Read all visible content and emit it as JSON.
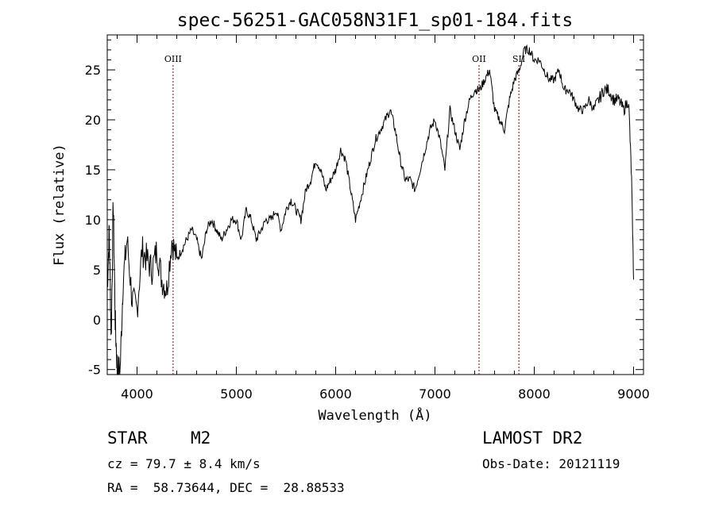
{
  "chart_data": {
    "type": "line",
    "title": "spec-56251-GAC058N31F1_sp01-184.fits",
    "xlabel": "Wavelength (Å)",
    "ylabel": "Flux (relative)",
    "xlim": [
      3700,
      9100
    ],
    "ylim": [
      -5.5,
      28.5
    ],
    "xticks": [
      4000,
      5000,
      6000,
      7000,
      8000,
      9000
    ],
    "yticks": [
      -5,
      0,
      5,
      10,
      15,
      20,
      25
    ],
    "xtick_labels": [
      "4000",
      "5000",
      "6000",
      "7000",
      "8000",
      "9000"
    ],
    "ytick_labels": [
      "-5",
      "0",
      "5",
      "10",
      "15",
      "20",
      "25"
    ],
    "grid": false,
    "line_color": "#000000",
    "marker_color": "#8b0000",
    "lines": [
      {
        "name": "OIII",
        "x": 4363
      },
      {
        "name": "OII",
        "x": 7444
      },
      {
        "name": "SII",
        "x": 7845
      }
    ],
    "series": [
      {
        "x": [
          3700,
          3720,
          3740,
          3760,
          3780,
          3800,
          3830,
          3860,
          3900,
          3950,
          4000,
          4050,
          4100,
          4150,
          4200,
          4250,
          4300,
          4350,
          4400,
          4450,
          4500,
          4550,
          4600,
          4650,
          4700,
          4750,
          4800,
          4850,
          4900,
          4950,
          5000,
          5050,
          5100,
          5150,
          5200,
          5250,
          5300,
          5350,
          5400,
          5450,
          5500,
          5550,
          5600,
          5650,
          5700,
          5750,
          5800,
          5850,
          5900,
          5950,
          6000,
          6050,
          6100,
          6150,
          6200,
          6250,
          6300,
          6350,
          6400,
          6450,
          6500,
          6550,
          6600,
          6650,
          6700,
          6750,
          6800,
          6850,
          6900,
          6950,
          7000,
          7050,
          7100,
          7150,
          7200,
          7250,
          7300,
          7350,
          7400,
          7450,
          7500,
          7550,
          7600,
          7650,
          7700,
          7750,
          7800,
          7850,
          7900,
          7950,
          8000,
          8050,
          8100,
          8150,
          8200,
          8250,
          8300,
          8350,
          8400,
          8450,
          8500,
          8550,
          8600,
          8650,
          8700,
          8750,
          8800,
          8850,
          8900,
          8950,
          8980,
          9000
        ],
        "y": [
          3,
          9,
          -2,
          12,
          0,
          -5,
          -5,
          4,
          8,
          2,
          1,
          7,
          6,
          5,
          7,
          4,
          3,
          8,
          6,
          7,
          8,
          9,
          8,
          6,
          9,
          10,
          9,
          8,
          9,
          10,
          10,
          8,
          11,
          10,
          8,
          9,
          10,
          10,
          11,
          9,
          11,
          12,
          11,
          10,
          13,
          14,
          16,
          15,
          13,
          14,
          15,
          17,
          16,
          13,
          10,
          12,
          14,
          16,
          18,
          19,
          20,
          21,
          19,
          16,
          14,
          14,
          13,
          15,
          17,
          19,
          20,
          18,
          15,
          21,
          19,
          17,
          20,
          22,
          23,
          23,
          24,
          25,
          21,
          20,
          19,
          22,
          24,
          25,
          27,
          27,
          26,
          26,
          25,
          24,
          24,
          25,
          23,
          23,
          22,
          21,
          21,
          22,
          21,
          22,
          23,
          23,
          22,
          22,
          21,
          22,
          14,
          4
        ]
      }
    ]
  },
  "info": {
    "class": "STAR",
    "subclass": "M2",
    "survey": "LAMOST DR2",
    "cz": "cz = 79.7 ± 8.4 km/s",
    "obs_date": "Obs-Date: 20121119",
    "radec": "RA =  58.73644, DEC =  28.88533"
  }
}
